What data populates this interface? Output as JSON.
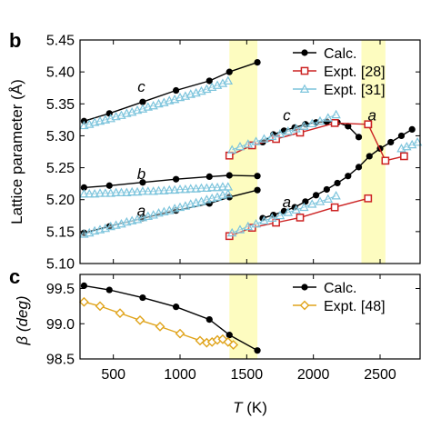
{
  "panels": {
    "top_label": "b",
    "bottom_label": "c"
  },
  "colors": {
    "calc": "#000000",
    "expt28": "#cc2222",
    "expt31": "#7cc4dc",
    "expt48": "#e0a41c",
    "highlight": "#fdfcc0"
  },
  "chart_data": [
    {
      "type": "line",
      "panel": "b",
      "xlabel": "",
      "ylabel": "Lattice parameter (Å)",
      "xlim": [
        250,
        2800
      ],
      "ylim": [
        5.1,
        5.45
      ],
      "xticks": [
        500,
        1000,
        1500,
        2000,
        2500
      ],
      "yticks": [
        "5.10",
        "5.15",
        "5.20",
        "5.25",
        "5.30",
        "5.35",
        "5.40",
        "5.45"
      ],
      "shaded_x_ranges": [
        [
          1370,
          1580
        ],
        [
          2360,
          2540
        ]
      ],
      "legend_position": "top-right",
      "legend": [
        "Calc.",
        "Expt. [28]",
        "Expt. [31]"
      ],
      "annotations": [
        {
          "text": "c",
          "x": 710,
          "y": 5.369
        },
        {
          "text": "b",
          "x": 710,
          "y": 5.232
        },
        {
          "text": "a",
          "x": 710,
          "y": 5.175
        },
        {
          "text": "c",
          "x": 1800,
          "y": 5.324
        },
        {
          "text": "a",
          "x": 1800,
          "y": 5.188
        },
        {
          "text": "a",
          "x": 2440,
          "y": 5.324
        }
      ],
      "series": [
        {
          "name": "Calc.",
          "group": "c",
          "x": [
            280,
            470,
            720,
            970,
            1220,
            1370,
            1580
          ],
          "y": [
            5.323,
            5.335,
            5.353,
            5.371,
            5.386,
            5.4,
            5.415
          ]
        },
        {
          "name": "Calc.",
          "group": "b",
          "x": [
            280,
            470,
            720,
            970,
            1220,
            1370,
            1580
          ],
          "y": [
            5.219,
            5.222,
            5.227,
            5.232,
            5.236,
            5.238,
            5.237
          ]
        },
        {
          "name": "Calc.",
          "group": "a",
          "x": [
            280,
            470,
            720,
            970,
            1220,
            1370,
            1580
          ],
          "y": [
            5.148,
            5.158,
            5.171,
            5.183,
            5.194,
            5.204,
            5.215
          ]
        },
        {
          "name": "Calc.",
          "group": "c2",
          "x": [
            1620,
            1700,
            1780,
            1860,
            1940,
            2020,
            2100,
            2180,
            2260,
            2340
          ],
          "y": [
            5.29,
            5.302,
            5.308,
            5.313,
            5.318,
            5.321,
            5.322,
            5.321,
            5.315,
            5.298
          ]
        },
        {
          "name": "Calc.",
          "group": "a2",
          "x": [
            1620,
            1700,
            1780,
            1860,
            1940,
            2020,
            2100,
            2180,
            2260,
            2340,
            2420,
            2500,
            2580,
            2660,
            2740
          ],
          "y": [
            5.171,
            5.176,
            5.182,
            5.188,
            5.197,
            5.207,
            5.216,
            5.226,
            5.237,
            5.251,
            5.268,
            5.28,
            5.29,
            5.3,
            5.31
          ]
        },
        {
          "name": "Expt. [28]",
          "group": "c",
          "x": [
            1370,
            1540,
            1720,
            1900,
            2160,
            2410
          ],
          "y": [
            5.269,
            5.285,
            5.295,
            5.305,
            5.32,
            5.318
          ]
        },
        {
          "name": "Expt. [28]",
          "group": "a",
          "x": [
            1370,
            1540,
            1720,
            1900,
            2160,
            2410
          ],
          "y": [
            5.143,
            5.156,
            5.164,
            5.172,
            5.188,
            5.202
          ]
        },
        {
          "name": "Expt. [28]",
          "group": "high",
          "x": [
            2410,
            2540,
            2680
          ],
          "y": [
            5.318,
            5.261,
            5.268
          ]
        },
        {
          "name": "Expt. [31]",
          "group": "c",
          "x": [
            280,
            320,
            360,
            400,
            440,
            480,
            520,
            560,
            600,
            640,
            680,
            720,
            760,
            800,
            840,
            880,
            920,
            960,
            1000,
            1040,
            1080,
            1120,
            1160,
            1200,
            1240,
            1280,
            1320,
            1360
          ],
          "y": [
            5.316,
            5.318,
            5.321,
            5.323,
            5.325,
            5.327,
            5.33,
            5.332,
            5.335,
            5.337,
            5.34,
            5.342,
            5.345,
            5.347,
            5.35,
            5.352,
            5.355,
            5.357,
            5.36,
            5.362,
            5.365,
            5.367,
            5.37,
            5.373,
            5.376,
            5.379,
            5.382,
            5.386
          ]
        },
        {
          "name": "Expt. [31]",
          "group": "b",
          "x": [
            280,
            320,
            360,
            400,
            440,
            480,
            520,
            560,
            600,
            640,
            680,
            720,
            760,
            800,
            840,
            880,
            920,
            960,
            1000,
            1040,
            1080,
            1120,
            1160,
            1200,
            1240,
            1280,
            1320,
            1360
          ],
          "y": [
            5.209,
            5.209,
            5.209,
            5.21,
            5.21,
            5.21,
            5.211,
            5.211,
            5.211,
            5.212,
            5.212,
            5.213,
            5.213,
            5.213,
            5.214,
            5.214,
            5.215,
            5.215,
            5.216,
            5.216,
            5.217,
            5.217,
            5.218,
            5.218,
            5.219,
            5.219,
            5.22,
            5.22
          ]
        },
        {
          "name": "Expt. [31]",
          "group": "a",
          "x": [
            280,
            320,
            360,
            400,
            440,
            480,
            520,
            560,
            600,
            640,
            680,
            720,
            760,
            800,
            840,
            880,
            920,
            960,
            1000,
            1040,
            1080,
            1120,
            1160,
            1200,
            1240,
            1280,
            1320,
            1360
          ],
          "y": [
            5.146,
            5.148,
            5.151,
            5.153,
            5.155,
            5.158,
            5.16,
            5.162,
            5.165,
            5.167,
            5.169,
            5.172,
            5.174,
            5.176,
            5.179,
            5.181,
            5.183,
            5.186,
            5.188,
            5.19,
            5.193,
            5.195,
            5.197,
            5.2,
            5.202,
            5.204,
            5.207,
            5.209
          ]
        },
        {
          "name": "Expt. [31]",
          "group": "c2",
          "x": [
            1390,
            1450,
            1510,
            1570,
            1630,
            1690,
            1750,
            1810,
            1870,
            1930,
            1990,
            2050,
            2110,
            2170
          ],
          "y": [
            5.278,
            5.283,
            5.287,
            5.291,
            5.295,
            5.299,
            5.303,
            5.307,
            5.311,
            5.315,
            5.319,
            5.323,
            5.328,
            5.333
          ]
        },
        {
          "name": "Expt. [31]",
          "group": "a2",
          "x": [
            1390,
            1450,
            1510,
            1570,
            1630,
            1690,
            1750,
            1810,
            1870,
            1930,
            1990,
            2050,
            2110,
            2170
          ],
          "y": [
            5.148,
            5.153,
            5.158,
            5.162,
            5.167,
            5.171,
            5.175,
            5.18,
            5.184,
            5.188,
            5.193,
            5.197,
            5.201,
            5.206
          ]
        },
        {
          "name": "Expt. [31]",
          "group": "high",
          "x": [
            2660,
            2700,
            2740,
            2780
          ],
          "y": [
            5.28,
            5.283,
            5.286,
            5.29
          ]
        }
      ]
    },
    {
      "type": "line",
      "panel": "c",
      "xlabel": "T (K)",
      "ylabel": "β (deg)",
      "xlim": [
        250,
        2800
      ],
      "ylim": [
        98.5,
        99.7
      ],
      "xticks": [
        500,
        1000,
        1500,
        2000,
        2500
      ],
      "yticks": [
        "98.5",
        "99.0",
        "99.5"
      ],
      "shaded_x_ranges": [
        [
          1370,
          1580
        ]
      ],
      "legend_position": "top-right",
      "legend": [
        "Calc.",
        "Expt. [48]"
      ],
      "series": [
        {
          "name": "Calc.",
          "x": [
            280,
            470,
            720,
            970,
            1220,
            1370,
            1580
          ],
          "y": [
            99.54,
            99.48,
            99.37,
            99.24,
            99.06,
            98.84,
            98.62
          ]
        },
        {
          "name": "Expt. [48]",
          "x": [
            280,
            400,
            550,
            700,
            850,
            1000,
            1150,
            1200,
            1240,
            1280,
            1320,
            1360,
            1400
          ],
          "y": [
            99.31,
            99.25,
            99.15,
            99.05,
            98.96,
            98.86,
            98.76,
            98.73,
            98.74,
            98.77,
            98.78,
            98.74,
            98.7
          ]
        }
      ]
    }
  ]
}
